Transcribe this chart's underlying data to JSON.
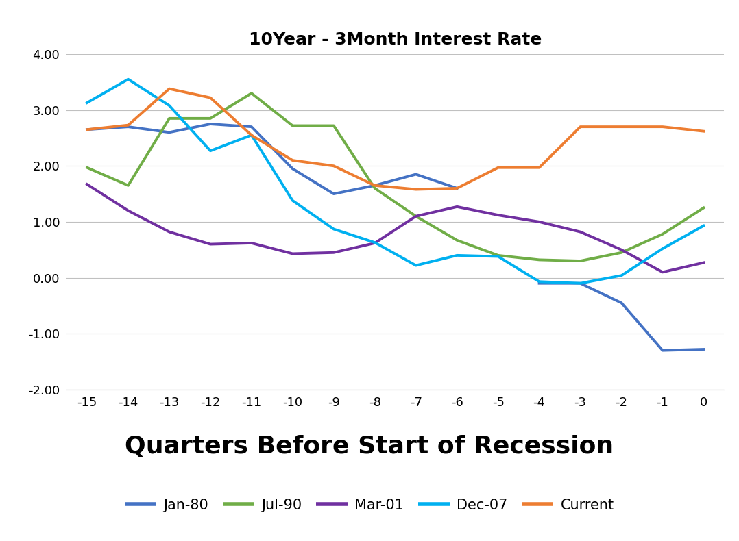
{
  "title": "10Year - 3Month Interest Rate",
  "xlabel": "Quarters Before Start of Recession",
  "x_values": [
    -15,
    -14,
    -13,
    -12,
    -11,
    -10,
    -9,
    -8,
    -7,
    -6,
    -5,
    -4,
    -3,
    -2,
    -1,
    0
  ],
  "series": {
    "Jan-80": {
      "color": "#4472C4",
      "values": [
        2.65,
        2.7,
        2.6,
        2.75,
        2.7,
        1.95,
        1.5,
        1.65,
        1.85,
        1.6,
        null,
        -0.1,
        -0.1,
        -0.45,
        -1.3,
        -1.28
      ]
    },
    "Jul-90": {
      "color": "#70AD47",
      "values": [
        1.97,
        1.65,
        2.85,
        2.85,
        3.3,
        2.72,
        2.72,
        1.6,
        1.1,
        0.67,
        0.4,
        0.32,
        0.3,
        0.45,
        0.78,
        1.25
      ]
    },
    "Mar-01": {
      "color": "#7030A0",
      "values": [
        1.67,
        1.2,
        0.82,
        0.6,
        0.62,
        0.43,
        0.45,
        0.62,
        1.1,
        1.27,
        1.12,
        1.0,
        0.82,
        0.5,
        0.1,
        0.27
      ]
    },
    "Dec-07": {
      "color": "#00B0F0",
      "values": [
        3.13,
        3.55,
        3.08,
        2.27,
        2.55,
        1.38,
        0.87,
        0.63,
        0.22,
        0.4,
        0.38,
        -0.07,
        -0.1,
        0.04,
        0.52,
        0.93
      ]
    },
    "Current": {
      "color": "#ED7D31",
      "values": [
        2.65,
        2.73,
        3.38,
        3.22,
        2.55,
        2.1,
        2.0,
        1.65,
        1.58,
        1.6,
        1.97,
        1.97,
        2.7,
        2.7,
        2.7,
        2.62
      ]
    }
  },
  "ylim": [
    -2.0,
    4.0
  ],
  "yticks": [
    -2.0,
    -1.0,
    0.0,
    1.0,
    2.0,
    3.0,
    4.0
  ],
  "ytick_labels": [
    "-2.00",
    "-1.00",
    "0.00",
    "1.00",
    "2.00",
    "3.00",
    "4.00"
  ],
  "background_color": "#FFFFFF",
  "grid_color": "#C0C0C0",
  "linewidth": 2.8,
  "title_fontsize": 18,
  "xlabel_fontsize": 26,
  "tick_fontsize": 13,
  "legend_fontsize": 15
}
